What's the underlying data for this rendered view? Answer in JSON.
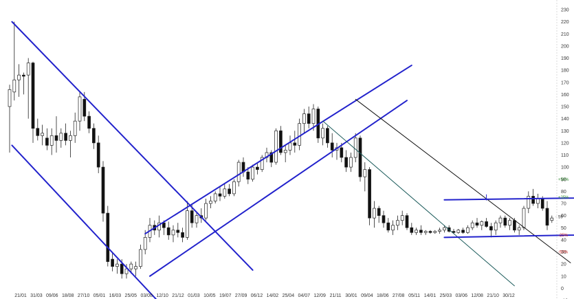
{
  "chart_data": {
    "type": "candlestick",
    "title": "",
    "xlabel": "",
    "ylabel": "",
    "ylim": [
      -10,
      230
    ],
    "yticks": [
      -10,
      0,
      10,
      20,
      30,
      40,
      50,
      60,
      70,
      80,
      90,
      100,
      110,
      120,
      130,
      140,
      150,
      160,
      170,
      180,
      190,
      200,
      210,
      220,
      230
    ],
    "x_tick_labels": [
      "21/01",
      "31/03",
      "09/06",
      "18/08",
      "27/10",
      "05/01",
      "16/03",
      "25/05",
      "03/08",
      "12/10",
      "21/12",
      "01/03",
      "10/05",
      "19/07",
      "27/09",
      "06/12",
      "14/02",
      "25/04",
      "04/07",
      "12/09",
      "21/11",
      "30/01",
      "09/04",
      "18/06",
      "27/08",
      "05/11",
      "14/01",
      "25/03",
      "03/06",
      "12/08",
      "21/10",
      "30/12"
    ],
    "grid": false,
    "price_levels": [
      {
        "label": "+50%",
        "value": 90,
        "color": "#2e8b2e"
      },
      {
        "label": "+25%",
        "value": 75,
        "color": "#2e8b2e"
      },
      {
        "label": "59",
        "value": 59,
        "color": "#333333"
      },
      {
        "label": "-25%",
        "value": 44,
        "color": "#cc2222"
      },
      {
        "label": "-50%",
        "value": 30,
        "color": "#cc2222"
      }
    ],
    "candles": [
      {
        "x": 1,
        "o": 150,
        "h": 168,
        "l": 112,
        "c": 164
      },
      {
        "x": 2,
        "o": 162,
        "h": 220,
        "l": 155,
        "c": 172
      },
      {
        "x": 3,
        "o": 172,
        "h": 185,
        "l": 158,
        "c": 176
      },
      {
        "x": 4,
        "o": 176,
        "h": 178,
        "l": 160,
        "c": 175
      },
      {
        "x": 5,
        "o": 176,
        "h": 190,
        "l": 140,
        "c": 186
      },
      {
        "x": 6,
        "o": 186,
        "h": 187,
        "l": 120,
        "c": 132
      },
      {
        "x": 7,
        "o": 132,
        "h": 140,
        "l": 122,
        "c": 126
      },
      {
        "x": 8,
        "o": 126,
        "h": 135,
        "l": 118,
        "c": 128
      },
      {
        "x": 9,
        "o": 124,
        "h": 132,
        "l": 114,
        "c": 118
      },
      {
        "x": 10,
        "o": 118,
        "h": 132,
        "l": 110,
        "c": 126
      },
      {
        "x": 11,
        "o": 126,
        "h": 142,
        "l": 112,
        "c": 122
      },
      {
        "x": 12,
        "o": 122,
        "h": 132,
        "l": 116,
        "c": 128
      },
      {
        "x": 13,
        "o": 128,
        "h": 136,
        "l": 118,
        "c": 122
      },
      {
        "x": 14,
        "o": 122,
        "h": 130,
        "l": 108,
        "c": 126
      },
      {
        "x": 15,
        "o": 126,
        "h": 145,
        "l": 120,
        "c": 138
      },
      {
        "x": 16,
        "o": 138,
        "h": 162,
        "l": 130,
        "c": 158
      },
      {
        "x": 17,
        "o": 156,
        "h": 162,
        "l": 138,
        "c": 142
      },
      {
        "x": 18,
        "o": 142,
        "h": 146,
        "l": 128,
        "c": 132
      },
      {
        "x": 19,
        "o": 132,
        "h": 136,
        "l": 115,
        "c": 120
      },
      {
        "x": 20,
        "o": 120,
        "h": 126,
        "l": 95,
        "c": 100
      },
      {
        "x": 21,
        "o": 100,
        "h": 105,
        "l": 55,
        "c": 62
      },
      {
        "x": 22,
        "o": 62,
        "h": 68,
        "l": 18,
        "c": 22
      },
      {
        "x": 23,
        "o": 24,
        "h": 30,
        "l": 14,
        "c": 18
      },
      {
        "x": 24,
        "o": 18,
        "h": 24,
        "l": 12,
        "c": 20
      },
      {
        "x": 25,
        "o": 20,
        "h": 24,
        "l": 8,
        "c": 12
      },
      {
        "x": 26,
        "o": 12,
        "h": 20,
        "l": 8,
        "c": 16
      },
      {
        "x": 27,
        "o": 16,
        "h": 22,
        "l": 12,
        "c": 20
      },
      {
        "x": 28,
        "o": 16,
        "h": 22,
        "l": 10,
        "c": 18
      },
      {
        "x": 29,
        "o": 18,
        "h": 36,
        "l": 16,
        "c": 32
      },
      {
        "x": 30,
        "o": 32,
        "h": 48,
        "l": 28,
        "c": 42
      },
      {
        "x": 31,
        "o": 42,
        "h": 58,
        "l": 38,
        "c": 52
      },
      {
        "x": 32,
        "o": 52,
        "h": 56,
        "l": 44,
        "c": 48
      },
      {
        "x": 33,
        "o": 48,
        "h": 60,
        "l": 42,
        "c": 54
      },
      {
        "x": 34,
        "o": 54,
        "h": 56,
        "l": 44,
        "c": 50
      },
      {
        "x": 35,
        "o": 50,
        "h": 55,
        "l": 40,
        "c": 44
      },
      {
        "x": 36,
        "o": 44,
        "h": 52,
        "l": 38,
        "c": 48
      },
      {
        "x": 37,
        "o": 48,
        "h": 54,
        "l": 42,
        "c": 46
      },
      {
        "x": 38,
        "o": 46,
        "h": 50,
        "l": 38,
        "c": 42
      },
      {
        "x": 39,
        "o": 42,
        "h": 72,
        "l": 40,
        "c": 64
      },
      {
        "x": 40,
        "o": 64,
        "h": 70,
        "l": 50,
        "c": 54
      },
      {
        "x": 41,
        "o": 54,
        "h": 62,
        "l": 50,
        "c": 60
      },
      {
        "x": 42,
        "o": 60,
        "h": 66,
        "l": 54,
        "c": 58
      },
      {
        "x": 43,
        "o": 58,
        "h": 74,
        "l": 56,
        "c": 70
      },
      {
        "x": 44,
        "o": 70,
        "h": 76,
        "l": 66,
        "c": 72
      },
      {
        "x": 45,
        "o": 72,
        "h": 80,
        "l": 70,
        "c": 78
      },
      {
        "x": 46,
        "o": 78,
        "h": 84,
        "l": 72,
        "c": 76
      },
      {
        "x": 47,
        "o": 76,
        "h": 86,
        "l": 74,
        "c": 82
      },
      {
        "x": 48,
        "o": 82,
        "h": 86,
        "l": 76,
        "c": 78
      },
      {
        "x": 49,
        "o": 78,
        "h": 90,
        "l": 76,
        "c": 88
      },
      {
        "x": 50,
        "o": 88,
        "h": 106,
        "l": 84,
        "c": 104
      },
      {
        "x": 51,
        "o": 104,
        "h": 108,
        "l": 92,
        "c": 96
      },
      {
        "x": 52,
        "o": 96,
        "h": 100,
        "l": 86,
        "c": 90
      },
      {
        "x": 53,
        "o": 90,
        "h": 102,
        "l": 88,
        "c": 100
      },
      {
        "x": 54,
        "o": 100,
        "h": 104,
        "l": 94,
        "c": 98
      },
      {
        "x": 55,
        "o": 98,
        "h": 110,
        "l": 96,
        "c": 108
      },
      {
        "x": 56,
        "o": 108,
        "h": 116,
        "l": 104,
        "c": 112
      },
      {
        "x": 57,
        "o": 112,
        "h": 114,
        "l": 100,
        "c": 104
      },
      {
        "x": 58,
        "o": 104,
        "h": 132,
        "l": 102,
        "c": 130
      },
      {
        "x": 59,
        "o": 130,
        "h": 134,
        "l": 110,
        "c": 112
      },
      {
        "x": 60,
        "o": 112,
        "h": 118,
        "l": 104,
        "c": 114
      },
      {
        "x": 61,
        "o": 114,
        "h": 126,
        "l": 110,
        "c": 120
      },
      {
        "x": 62,
        "o": 120,
        "h": 130,
        "l": 112,
        "c": 118
      },
      {
        "x": 63,
        "o": 118,
        "h": 140,
        "l": 114,
        "c": 136
      },
      {
        "x": 64,
        "o": 136,
        "h": 148,
        "l": 128,
        "c": 144
      },
      {
        "x": 65,
        "o": 144,
        "h": 150,
        "l": 132,
        "c": 136
      },
      {
        "x": 66,
        "o": 136,
        "h": 152,
        "l": 130,
        "c": 148
      },
      {
        "x": 67,
        "o": 148,
        "h": 150,
        "l": 120,
        "c": 124
      },
      {
        "x": 68,
        "o": 124,
        "h": 136,
        "l": 118,
        "c": 132
      },
      {
        "x": 69,
        "o": 132,
        "h": 134,
        "l": 116,
        "c": 120
      },
      {
        "x": 70,
        "o": 120,
        "h": 128,
        "l": 108,
        "c": 114
      },
      {
        "x": 71,
        "o": 114,
        "h": 120,
        "l": 106,
        "c": 116
      },
      {
        "x": 72,
        "o": 116,
        "h": 120,
        "l": 104,
        "c": 108
      },
      {
        "x": 73,
        "o": 108,
        "h": 114,
        "l": 96,
        "c": 100
      },
      {
        "x": 74,
        "o": 100,
        "h": 112,
        "l": 96,
        "c": 108
      },
      {
        "x": 75,
        "o": 108,
        "h": 128,
        "l": 104,
        "c": 124
      },
      {
        "x": 76,
        "o": 124,
        "h": 126,
        "l": 88,
        "c": 92
      },
      {
        "x": 77,
        "o": 92,
        "h": 104,
        "l": 80,
        "c": 98
      },
      {
        "x": 78,
        "o": 98,
        "h": 100,
        "l": 52,
        "c": 58
      },
      {
        "x": 79,
        "o": 58,
        "h": 72,
        "l": 50,
        "c": 66
      },
      {
        "x": 80,
        "o": 66,
        "h": 68,
        "l": 54,
        "c": 60
      },
      {
        "x": 81,
        "o": 60,
        "h": 64,
        "l": 50,
        "c": 54
      },
      {
        "x": 82,
        "o": 54,
        "h": 58,
        "l": 46,
        "c": 48
      },
      {
        "x": 83,
        "o": 48,
        "h": 56,
        "l": 44,
        "c": 52
      },
      {
        "x": 84,
        "o": 52,
        "h": 60,
        "l": 48,
        "c": 56
      },
      {
        "x": 85,
        "o": 56,
        "h": 64,
        "l": 52,
        "c": 60
      },
      {
        "x": 86,
        "o": 60,
        "h": 62,
        "l": 48,
        "c": 50
      },
      {
        "x": 87,
        "o": 50,
        "h": 54,
        "l": 44,
        "c": 46
      },
      {
        "x": 88,
        "o": 46,
        "h": 50,
        "l": 44,
        "c": 48
      },
      {
        "x": 89,
        "o": 48,
        "h": 52,
        "l": 44,
        "c": 46
      },
      {
        "x": 90,
        "o": 46,
        "h": 48,
        "l": 44,
        "c": 47
      },
      {
        "x": 91,
        "o": 47,
        "h": 48,
        "l": 45,
        "c": 46
      },
      {
        "x": 92,
        "o": 46,
        "h": 48,
        "l": 45,
        "c": 47
      },
      {
        "x": 93,
        "o": 47,
        "h": 50,
        "l": 45,
        "c": 48
      },
      {
        "x": 94,
        "o": 48,
        "h": 52,
        "l": 46,
        "c": 50
      },
      {
        "x": 95,
        "o": 50,
        "h": 52,
        "l": 46,
        "c": 47
      },
      {
        "x": 96,
        "o": 47,
        "h": 49,
        "l": 45,
        "c": 46
      },
      {
        "x": 97,
        "o": 46,
        "h": 49,
        "l": 45,
        "c": 48
      },
      {
        "x": 98,
        "o": 48,
        "h": 50,
        "l": 45,
        "c": 46
      },
      {
        "x": 99,
        "o": 46,
        "h": 52,
        "l": 45,
        "c": 50
      },
      {
        "x": 100,
        "o": 50,
        "h": 56,
        "l": 48,
        "c": 54
      },
      {
        "x": 101,
        "o": 54,
        "h": 58,
        "l": 50,
        "c": 52
      },
      {
        "x": 102,
        "o": 52,
        "h": 56,
        "l": 48,
        "c": 55
      },
      {
        "x": 103,
        "o": 55,
        "h": 58,
        "l": 50,
        "c": 51
      },
      {
        "x": 104,
        "o": 51,
        "h": 54,
        "l": 42,
        "c": 48
      },
      {
        "x": 105,
        "o": 48,
        "h": 56,
        "l": 44,
        "c": 54
      },
      {
        "x": 106,
        "o": 54,
        "h": 60,
        "l": 50,
        "c": 58
      },
      {
        "x": 107,
        "o": 58,
        "h": 60,
        "l": 50,
        "c": 52
      },
      {
        "x": 108,
        "o": 52,
        "h": 58,
        "l": 48,
        "c": 56
      },
      {
        "x": 109,
        "o": 56,
        "h": 58,
        "l": 46,
        "c": 48
      },
      {
        "x": 110,
        "o": 48,
        "h": 52,
        "l": 44,
        "c": 50
      },
      {
        "x": 111,
        "o": 50,
        "h": 68,
        "l": 48,
        "c": 66
      },
      {
        "x": 112,
        "o": 66,
        "h": 80,
        "l": 62,
        "c": 76
      },
      {
        "x": 113,
        "o": 76,
        "h": 82,
        "l": 68,
        "c": 70
      },
      {
        "x": 114,
        "o": 70,
        "h": 78,
        "l": 66,
        "c": 74
      },
      {
        "x": 115,
        "o": 74,
        "h": 76,
        "l": 64,
        "c": 66
      },
      {
        "x": 116,
        "o": 66,
        "h": 72,
        "l": 48,
        "c": 52
      },
      {
        "x": 117,
        "o": 56,
        "h": 60,
        "l": 54,
        "c": 58
      }
    ],
    "trendlines": [
      {
        "name": "downtrend-upper",
        "color": "#2222cc",
        "width": 2,
        "x1": 1.5,
        "y1": 220,
        "x2": 53,
        "y2": 15
      },
      {
        "name": "downtrend-lower",
        "color": "#2222cc",
        "width": 2,
        "x1": 1.5,
        "y1": 118,
        "x2": 35,
        "y2": -20
      },
      {
        "name": "uptrend-upper",
        "color": "#2222cc",
        "width": 2,
        "x1": 30,
        "y1": 45,
        "x2": 87,
        "y2": 184
      },
      {
        "name": "uptrend-lower",
        "color": "#2222cc",
        "width": 2,
        "x1": 31,
        "y1": 10,
        "x2": 86,
        "y2": 155
      },
      {
        "name": "decline-channel-lower",
        "color": "#1a5a5a",
        "width": 1,
        "x1": 68,
        "y1": 138,
        "x2": 109,
        "y2": 2
      },
      {
        "name": "decline-channel-upper",
        "color": "#111111",
        "width": 1,
        "x1": 75,
        "y1": 156,
        "x2": 121,
        "y2": 21
      },
      {
        "name": "range-top",
        "color": "#2222cc",
        "width": 2,
        "x1": 94,
        "y1": 73,
        "x2": 152,
        "y2": 76
      },
      {
        "name": "range-bottom",
        "color": "#2222cc",
        "width": 2,
        "x1": 94,
        "y1": 42,
        "x2": 152,
        "y2": 46
      }
    ]
  }
}
